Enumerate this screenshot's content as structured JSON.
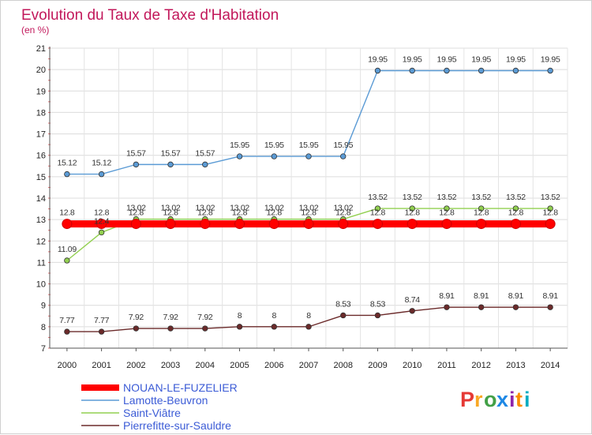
{
  "chart_data": {
    "type": "line",
    "title": "Evolution du Taux de Taxe d'Habitation",
    "subtitle": "(en %)",
    "xlabel": "",
    "ylabel": "",
    "x": [
      2000,
      2001,
      2002,
      2003,
      2004,
      2005,
      2006,
      2007,
      2008,
      2009,
      2010,
      2011,
      2012,
      2013,
      2014
    ],
    "ylim": [
      7,
      21
    ],
    "yticks": [
      7,
      8,
      9,
      10,
      11,
      12,
      13,
      14,
      15,
      16,
      17,
      18,
      19,
      20,
      21
    ],
    "grid": true,
    "legend_position": "bottom-left",
    "series": [
      {
        "name": "NOUAN-LE-FUZELIER",
        "color": "#ff0000",
        "values": [
          12.8,
          12.8,
          12.8,
          12.8,
          12.8,
          12.8,
          12.8,
          12.8,
          12.8,
          12.8,
          12.8,
          12.8,
          12.8,
          12.8,
          12.8
        ],
        "labels": [
          "12.8",
          "12.8",
          "12.8",
          "12.8",
          "12.8",
          "12.8",
          "12.8",
          "12.8",
          "12.8",
          "12.8",
          "12.8",
          "12.8",
          "12.8",
          "12.8",
          "12.8"
        ]
      },
      {
        "name": "Lamotte-Beuvron",
        "color": "#5b9bd5",
        "values": [
          15.12,
          15.12,
          15.57,
          15.57,
          15.57,
          15.95,
          15.95,
          15.95,
          15.95,
          19.95,
          19.95,
          19.95,
          19.95,
          19.95,
          19.95
        ],
        "labels": [
          "15.12",
          "15.12",
          "15.57",
          "15.57",
          "15.57",
          "15.95",
          "15.95",
          "15.95",
          "15.95",
          "19.95",
          "19.95",
          "19.95",
          "19.95",
          "19.95",
          "19.95"
        ]
      },
      {
        "name": "Saint-Viâtre",
        "color": "#92d050",
        "values": [
          11.09,
          12.4,
          13.02,
          13.02,
          13.02,
          13.02,
          13.02,
          13.02,
          13.02,
          13.52,
          13.52,
          13.52,
          13.52,
          13.52,
          13.52
        ],
        "labels": [
          "11.09",
          "12.4",
          "13.02",
          "13.02",
          "13.02",
          "13.02",
          "13.02",
          "13.02",
          "13.02",
          "13.52",
          "13.52",
          "13.52",
          "13.52",
          "13.52",
          "13.52"
        ]
      },
      {
        "name": "Pierrefitte-sur-Sauldre",
        "color": "#6b2a2a",
        "values": [
          7.77,
          7.77,
          7.92,
          7.92,
          7.92,
          8,
          8,
          8,
          8.53,
          8.53,
          8.74,
          8.91,
          8.91,
          8.91,
          8.91
        ],
        "labels": [
          "7.77",
          "7.77",
          "7.92",
          "7.92",
          "7.92",
          "8",
          "8",
          "8",
          "8.53",
          "8.53",
          "8.74",
          "8.91",
          "8.91",
          "8.91",
          "8.91"
        ]
      }
    ]
  },
  "logo": {
    "text": "Proxiti",
    "letters": [
      {
        "char": "P",
        "color": "#e53935"
      },
      {
        "char": "r",
        "color": "#f9a825"
      },
      {
        "char": "o",
        "color": "#43a047"
      },
      {
        "char": "x",
        "color": "#1e88e5"
      },
      {
        "char": "i",
        "color": "#8e24aa"
      },
      {
        "char": "t",
        "color": "#fb8c00"
      },
      {
        "char": "i",
        "color": "#00acc1"
      }
    ]
  }
}
